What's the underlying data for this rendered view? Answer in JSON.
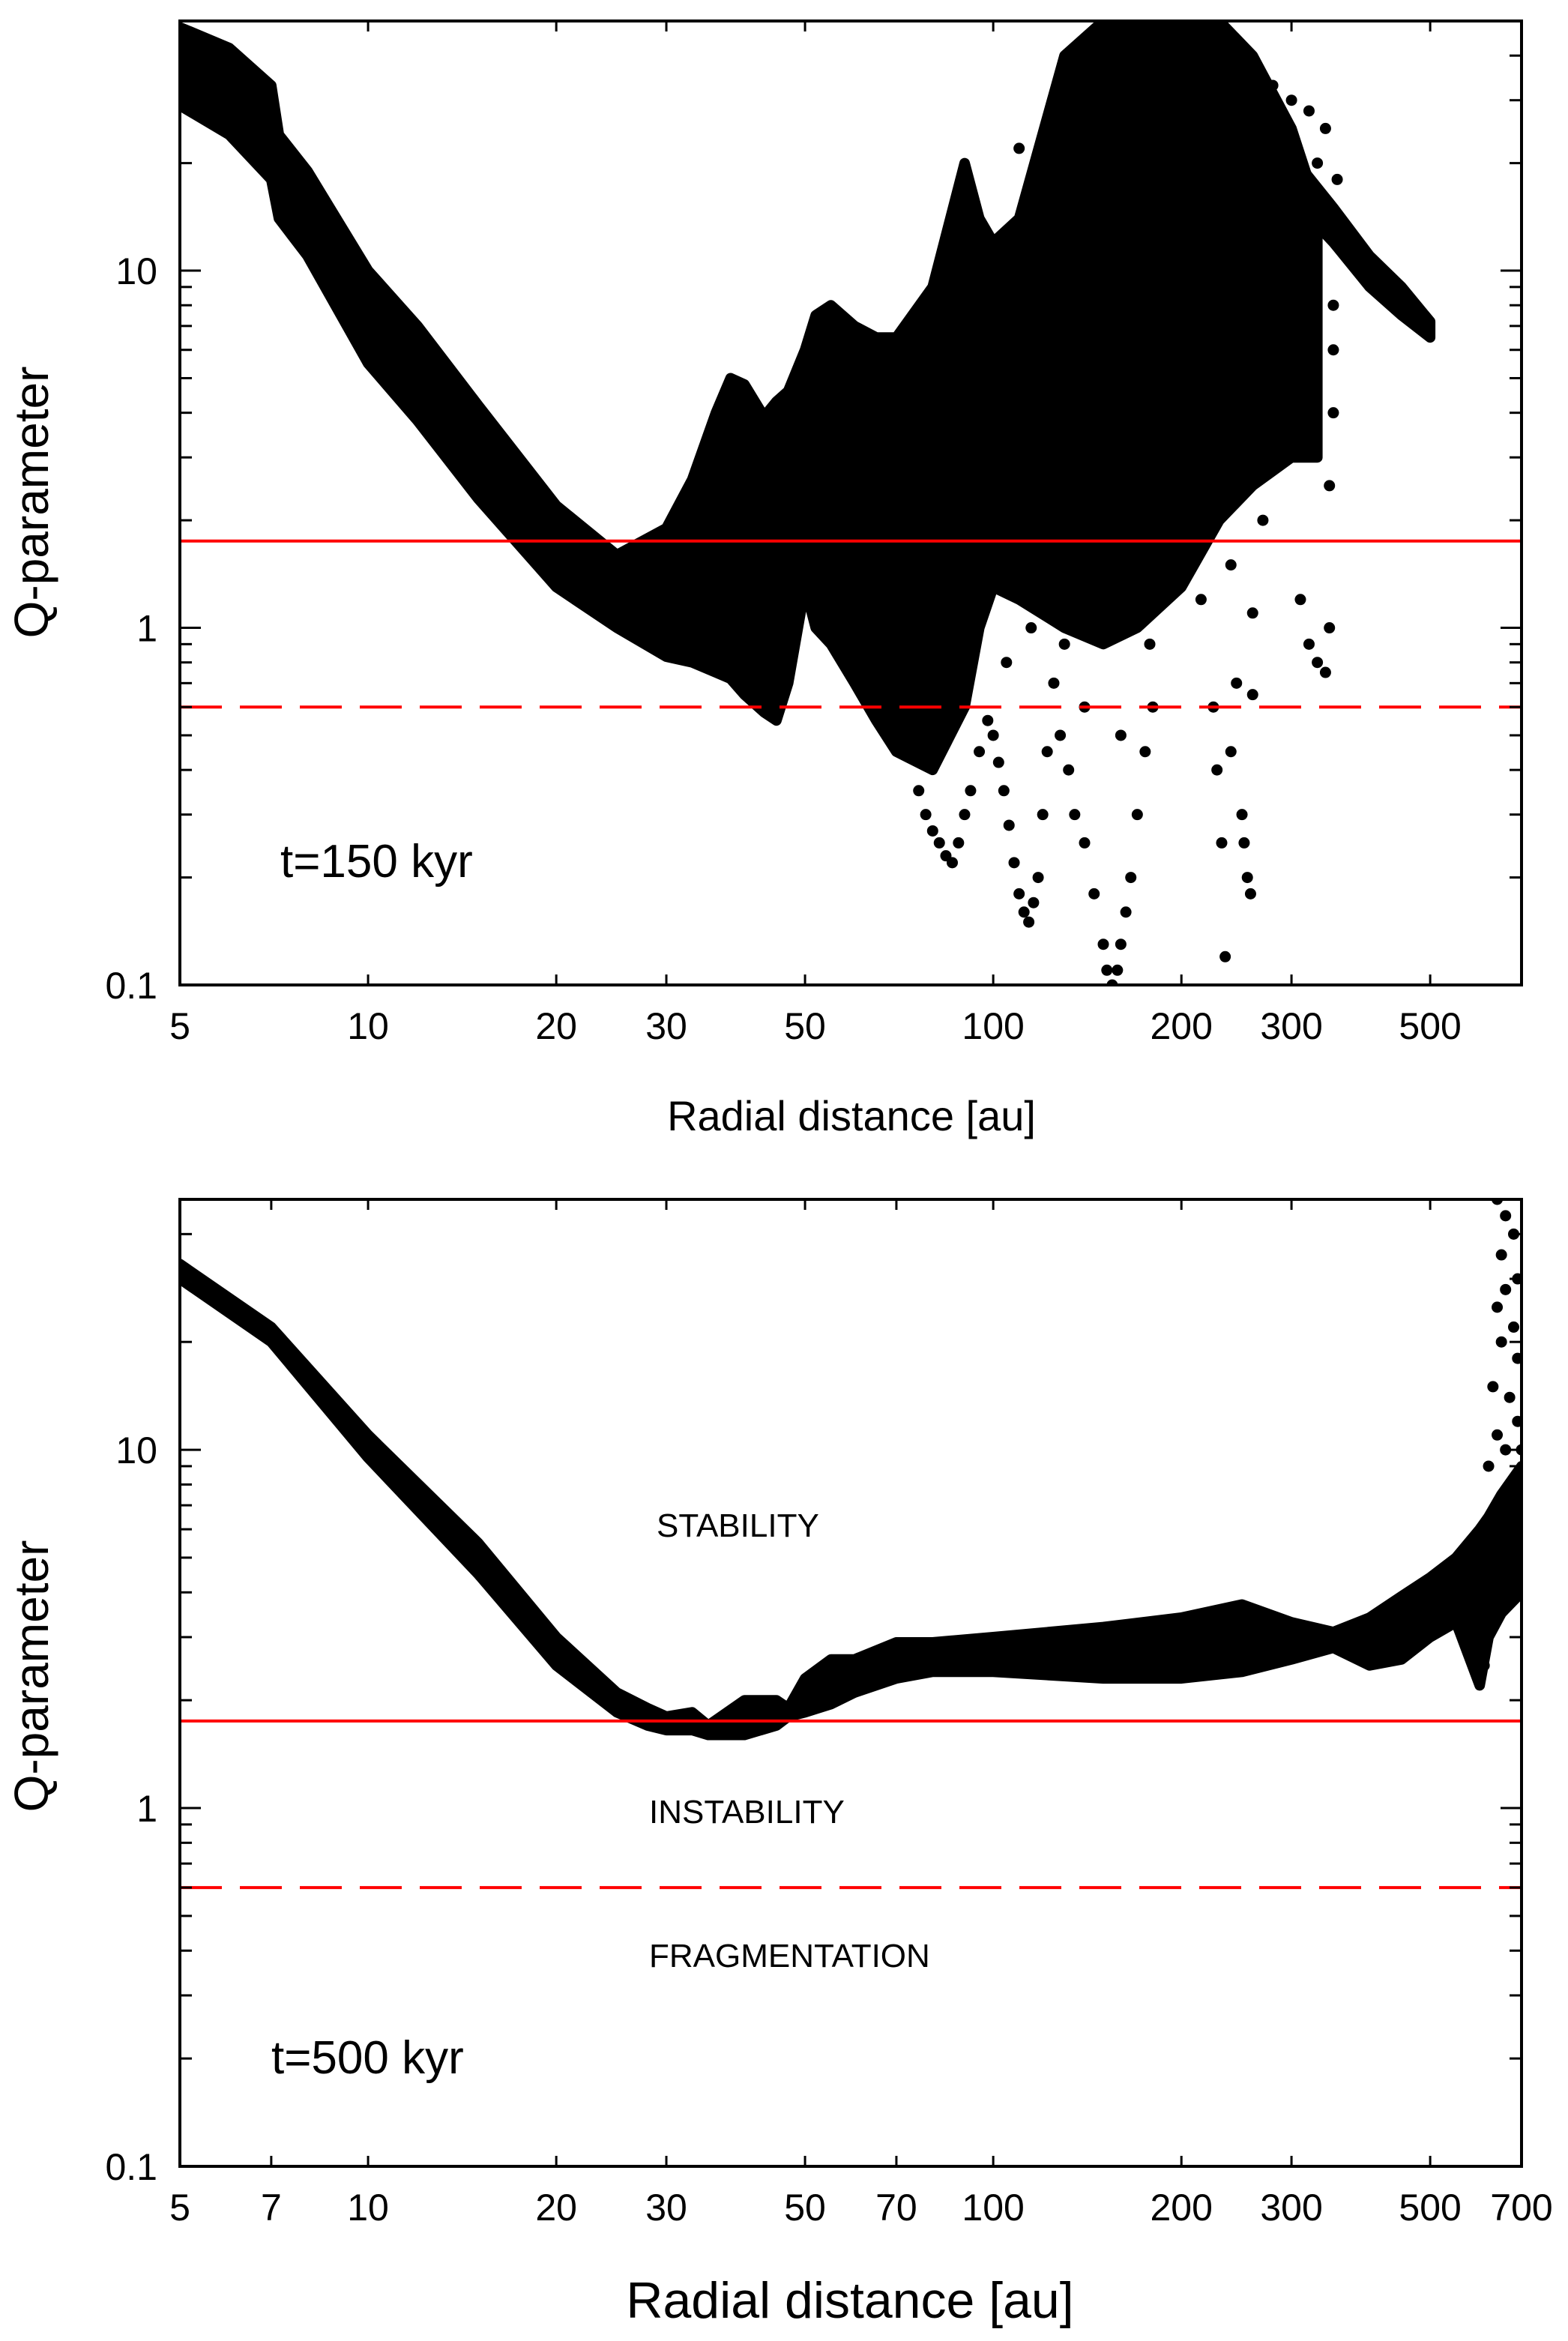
{
  "chart_data": [
    {
      "type": "scatter",
      "xlabel": "Radial distance [au]",
      "ylabel": "Q-parameter",
      "annotation": "t=150 kyr",
      "xscale": "log",
      "yscale": "log",
      "xlim": [
        5,
        700
      ],
      "ylim": [
        0.1,
        50
      ],
      "xticks": [
        5,
        10,
        20,
        30,
        50,
        100,
        200,
        300,
        500
      ],
      "xtick_labels": [
        "5",
        "10",
        "20",
        "30",
        "50",
        "100",
        "200",
        "300",
        "500"
      ],
      "yticks": [
        0.1,
        1,
        10
      ],
      "ytick_labels": [
        "0.1",
        "1",
        "10"
      ],
      "grid": false,
      "marker_color": "#000000",
      "reference_lines": [
        {
          "y": 1.75,
          "style": "solid",
          "color": "#ff0000"
        },
        {
          "y": 0.6,
          "style": "dashed",
          "color": "#ff0000"
        }
      ],
      "dense_bands": [
        {
          "x": [
            5,
            6,
            7,
            7.2,
            8,
            10,
            12,
            15,
            20,
            25,
            30,
            33,
            36,
            38,
            40,
            43,
            45,
            47,
            50,
            52,
            55,
            60,
            65,
            70,
            80,
            90,
            95,
            100,
            110,
            130,
            150,
            170,
            200,
            230,
            260,
            300,
            330
          ],
          "upper": [
            48,
            42,
            33,
            24,
            19,
            10,
            7,
            4.2,
            2.2,
            1.6,
            1.9,
            2.6,
            4,
            5,
            4.8,
            3.9,
            4.3,
            4.6,
            6,
            7.5,
            8,
            7,
            6.5,
            6.5,
            9,
            20,
            14,
            12,
            14,
            40,
            50,
            50,
            50,
            50,
            40,
            25,
            15
          ],
          "lower": [
            29,
            24,
            18,
            14,
            11,
            5.5,
            3.8,
            2.3,
            1.3,
            1.0,
            0.83,
            0.8,
            0.75,
            0.72,
            0.65,
            0.58,
            0.55,
            0.7,
            1.3,
            1.0,
            0.9,
            0.7,
            0.55,
            0.45,
            0.4,
            0.6,
            1.0,
            1.3,
            1.2,
            1.0,
            0.9,
            1.0,
            1.3,
            2,
            2.5,
            3,
            3
          ]
        },
        {
          "x": [
            200,
            250,
            300,
            350,
            400,
            450,
            500
          ],
          "upper": [
            45,
            30,
            21,
            15,
            11,
            9,
            7.2
          ],
          "lower": [
            35,
            24,
            16,
            12,
            9,
            7.5,
            6.5
          ]
        }
      ],
      "points": [
        [
          62,
          1.5
        ],
        [
          64,
          1.2
        ],
        [
          66,
          0.9
        ],
        [
          68,
          1.1
        ],
        [
          70,
          0.7
        ],
        [
          72,
          0.6
        ],
        [
          74,
          0.5
        ],
        [
          76,
          0.35
        ],
        [
          78,
          0.3
        ],
        [
          80,
          0.27
        ],
        [
          82,
          0.25
        ],
        [
          84,
          0.23
        ],
        [
          86,
          0.22
        ],
        [
          88,
          0.25
        ],
        [
          90,
          0.3
        ],
        [
          92,
          0.35
        ],
        [
          95,
          0.45
        ],
        [
          98,
          0.55
        ],
        [
          100,
          0.5
        ],
        [
          102,
          0.42
        ],
        [
          104,
          0.35
        ],
        [
          106,
          0.28
        ],
        [
          108,
          0.22
        ],
        [
          110,
          0.18
        ],
        [
          112,
          0.16
        ],
        [
          114,
          0.15
        ],
        [
          116,
          0.17
        ],
        [
          118,
          0.2
        ],
        [
          120,
          0.3
        ],
        [
          122,
          0.45
        ],
        [
          125,
          0.7
        ],
        [
          128,
          0.5
        ],
        [
          132,
          0.4
        ],
        [
          135,
          0.3
        ],
        [
          140,
          0.25
        ],
        [
          145,
          0.18
        ],
        [
          150,
          0.13
        ],
        [
          152,
          0.11
        ],
        [
          155,
          0.1
        ],
        [
          158,
          0.11
        ],
        [
          160,
          0.13
        ],
        [
          163,
          0.16
        ],
        [
          166,
          0.2
        ],
        [
          170,
          0.3
        ],
        [
          175,
          0.45
        ],
        [
          180,
          0.6
        ],
        [
          85,
          0.9
        ],
        [
          95,
          1.2
        ],
        [
          105,
          0.8
        ],
        [
          115,
          1.0
        ],
        [
          130,
          0.9
        ],
        [
          140,
          0.6
        ],
        [
          160,
          0.5
        ],
        [
          178,
          0.9
        ],
        [
          225,
          0.6
        ],
        [
          228,
          0.4
        ],
        [
          232,
          0.25
        ],
        [
          235,
          0.12
        ],
        [
          240,
          0.45
        ],
        [
          245,
          0.7
        ],
        [
          250,
          0.3
        ],
        [
          252,
          0.25
        ],
        [
          255,
          0.2
        ],
        [
          258,
          0.18
        ],
        [
          215,
          1.2
        ],
        [
          240,
          1.5
        ],
        [
          260,
          1.1
        ],
        [
          270,
          2
        ],
        [
          280,
          3
        ],
        [
          290,
          5
        ],
        [
          300,
          7
        ],
        [
          310,
          1.2
        ],
        [
          320,
          0.9
        ],
        [
          330,
          0.8
        ],
        [
          340,
          0.75
        ],
        [
          345,
          1.0
        ],
        [
          345,
          2.5
        ],
        [
          350,
          4
        ],
        [
          350,
          8
        ],
        [
          355,
          13
        ],
        [
          355,
          18
        ],
        [
          340,
          25
        ],
        [
          320,
          28
        ],
        [
          300,
          30
        ],
        [
          280,
          33
        ],
        [
          260,
          35
        ],
        [
          330,
          20
        ],
        [
          350,
          6
        ],
        [
          280,
          12
        ],
        [
          300,
          15
        ],
        [
          270,
          20
        ],
        [
          260,
          0.65
        ],
        [
          120,
          22
        ],
        [
          130,
          25
        ],
        [
          110,
          22
        ],
        [
          250,
          36
        ],
        [
          230,
          38
        ]
      ]
    },
    {
      "type": "scatter",
      "xlabel": "Radial distance [au]",
      "ylabel": "Q-parameter",
      "annotation": "t=500 kyr",
      "region_labels": [
        "STABILITY",
        "INSTABILITY",
        "FRAGMENTATION"
      ],
      "xscale": "log",
      "yscale": "log",
      "xlim": [
        5,
        700
      ],
      "ylim": [
        0.1,
        50
      ],
      "xticks": [
        5,
        7,
        10,
        20,
        30,
        50,
        70,
        100,
        200,
        300,
        500,
        700
      ],
      "xtick_labels": [
        "5",
        "7",
        "10",
        "20",
        "30",
        "50",
        "70",
        "100",
        "200",
        "300",
        "500",
        "700"
      ],
      "yticks": [
        0.1,
        1,
        10
      ],
      "ytick_labels": [
        "0.1",
        "1",
        "10"
      ],
      "grid": false,
      "marker_color": "#000000",
      "reference_lines": [
        {
          "y": 1.75,
          "style": "solid",
          "color": "#ff0000"
        },
        {
          "y": 0.6,
          "style": "dashed",
          "color": "#ff0000"
        }
      ],
      "dense_bands": [
        {
          "x": [
            5,
            7,
            10,
            15,
            20,
            25,
            28,
            30,
            33,
            35,
            40,
            45,
            47,
            50,
            55,
            60,
            70,
            80,
            100,
            150,
            200,
            250,
            300,
            350,
            400,
            450,
            500,
            550,
            600,
            620,
            650,
            700
          ],
          "upper": [
            33,
            22,
            11,
            5.5,
            3,
            2.1,
            1.9,
            1.8,
            1.85,
            1.7,
            2.0,
            2.0,
            1.9,
            2.3,
            2.6,
            2.6,
            2.9,
            2.9,
            3.0,
            3.2,
            3.4,
            3.7,
            3.3,
            3.1,
            3.4,
            3.9,
            4.4,
            5,
            6,
            6.5,
            7.5,
            9
          ],
          "lower": [
            30,
            20,
            9.5,
            4.5,
            2.5,
            1.85,
            1.7,
            1.65,
            1.65,
            1.6,
            1.6,
            1.7,
            1.8,
            1.85,
            1.95,
            2.1,
            2.3,
            2.4,
            2.4,
            2.3,
            2.3,
            2.4,
            2.6,
            2.8,
            2.5,
            2.6,
            3,
            3.3,
            2.2,
            3,
            3.5,
            4
          ]
        }
      ],
      "points": [
        [
          640,
          50
        ],
        [
          660,
          45
        ],
        [
          680,
          40
        ],
        [
          650,
          35
        ],
        [
          690,
          30
        ],
        [
          660,
          28
        ],
        [
          640,
          25
        ],
        [
          680,
          22
        ],
        [
          650,
          20
        ],
        [
          690,
          18
        ],
        [
          630,
          15
        ],
        [
          670,
          14
        ],
        [
          690,
          12
        ],
        [
          640,
          11
        ],
        [
          660,
          10
        ],
        [
          700,
          10
        ],
        [
          680,
          8
        ],
        [
          620,
          9
        ],
        [
          600,
          2.3
        ],
        [
          610,
          2.5
        ]
      ]
    }
  ]
}
